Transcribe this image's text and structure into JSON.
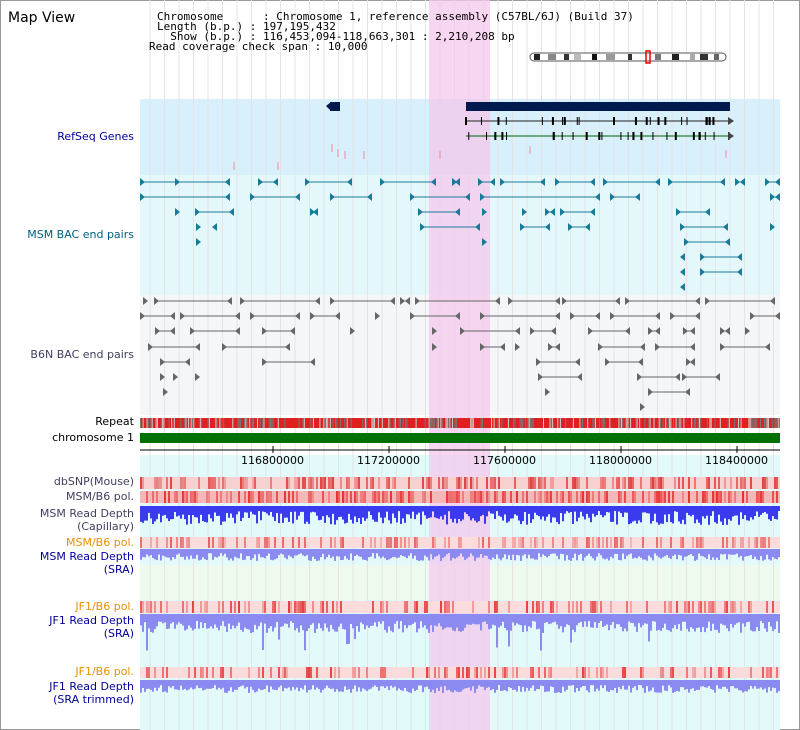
{
  "header": {
    "title": "Map View",
    "chromosome_key": "Chromosome      : ",
    "chromosome_value": "Chromosome 1, reference assembly (C57BL/6J) (Build 37)",
    "length_key": "Length (b.p.) : ",
    "length_value": "197,195,432",
    "show_key": "  Show (b.p.) : ",
    "show_value": "116,453,094-118,663,301 : 2,210,208 bp",
    "coverage_key": "Read coverage check span : ",
    "coverage_value": "10,000"
  },
  "tracks": {
    "refseq": "RefSeq Genes",
    "msm_bac": "MSM BAC end pairs",
    "b6n_bac": "B6N BAC end pairs",
    "repeat": "Repeat",
    "chromosome": "chromosome 1",
    "dbsnp": "dbSNP(Mouse)",
    "msm_b6_pol_1": "MSM/B6 pol.",
    "msm_read_depth_cap_1": "MSM Read Depth",
    "msm_read_depth_cap_2": "(Capillary)",
    "msm_b6_pol_2": "MSM/B6 pol.",
    "msm_read_depth_sra_1": "MSM Read Depth",
    "msm_read_depth_sra_2": "(SRA)",
    "jf1_b6_pol_1": "JF1/B6 pol.",
    "jf1_read_depth_sra_1": "JF1 Read Depth",
    "jf1_read_depth_sra_2": "(SRA)",
    "jf1_b6_pol_2": "JF1/B6 pol.",
    "jf1_read_depth_trim_1": "JF1 Read Depth",
    "jf1_read_depth_trim_2": "(SRA trimmed)"
  },
  "axis": {
    "ticks": [
      "116800000",
      "117200000",
      "117600000",
      "118000000",
      "118400000"
    ]
  },
  "colors": {
    "highlight": "#f4c8ec",
    "refseq_bg": "#d8f0fb",
    "msm_bg": "#e4f8fb",
    "b6n_bg": "#f4f6f8",
    "lower_bg": "#e2fafa",
    "msm_sra_bg": "#eefaee",
    "chromosome_green": "#007000",
    "repeat_red": "#e02020",
    "gene_navy": "#001a4e",
    "msm_teal": "#1a7a9a",
    "b6n_grey": "#666666",
    "depth_blue": "#3a3aee",
    "depth_lightblue": "#8a8af0",
    "label_orange": "#e89000",
    "label_blue": "#000099",
    "label_teal": "#006080",
    "label_slate": "#404060"
  }
}
